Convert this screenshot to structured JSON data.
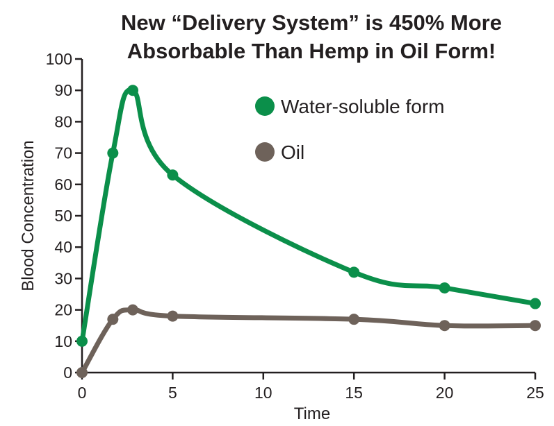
{
  "chart_data": {
    "type": "line",
    "title": "New “Delivery System” is 450% More",
    "subtitle": "Absorbable Than Hemp in Oil Form!",
    "xlabel": "Time",
    "ylabel": "Blood Concentration",
    "xlim": [
      0,
      25
    ],
    "ylim": [
      0,
      100
    ],
    "xticks": [
      0,
      5,
      10,
      15,
      20,
      25
    ],
    "yticks": [
      0,
      10,
      20,
      30,
      40,
      50,
      60,
      70,
      80,
      90,
      100
    ],
    "grid": false,
    "legend_position": "top-right",
    "series": [
      {
        "name": "Water-soluble form",
        "color": "#0b8f4a",
        "x": [
          0,
          1.7,
          2.8,
          5,
          15,
          20,
          25
        ],
        "y": [
          10,
          70,
          90,
          63,
          32,
          27,
          22
        ]
      },
      {
        "name": "Oil",
        "color": "#6e625a",
        "x": [
          0,
          1.7,
          2.8,
          5,
          15,
          20,
          25
        ],
        "y": [
          0,
          17,
          20,
          18,
          17,
          15,
          15
        ]
      }
    ]
  }
}
